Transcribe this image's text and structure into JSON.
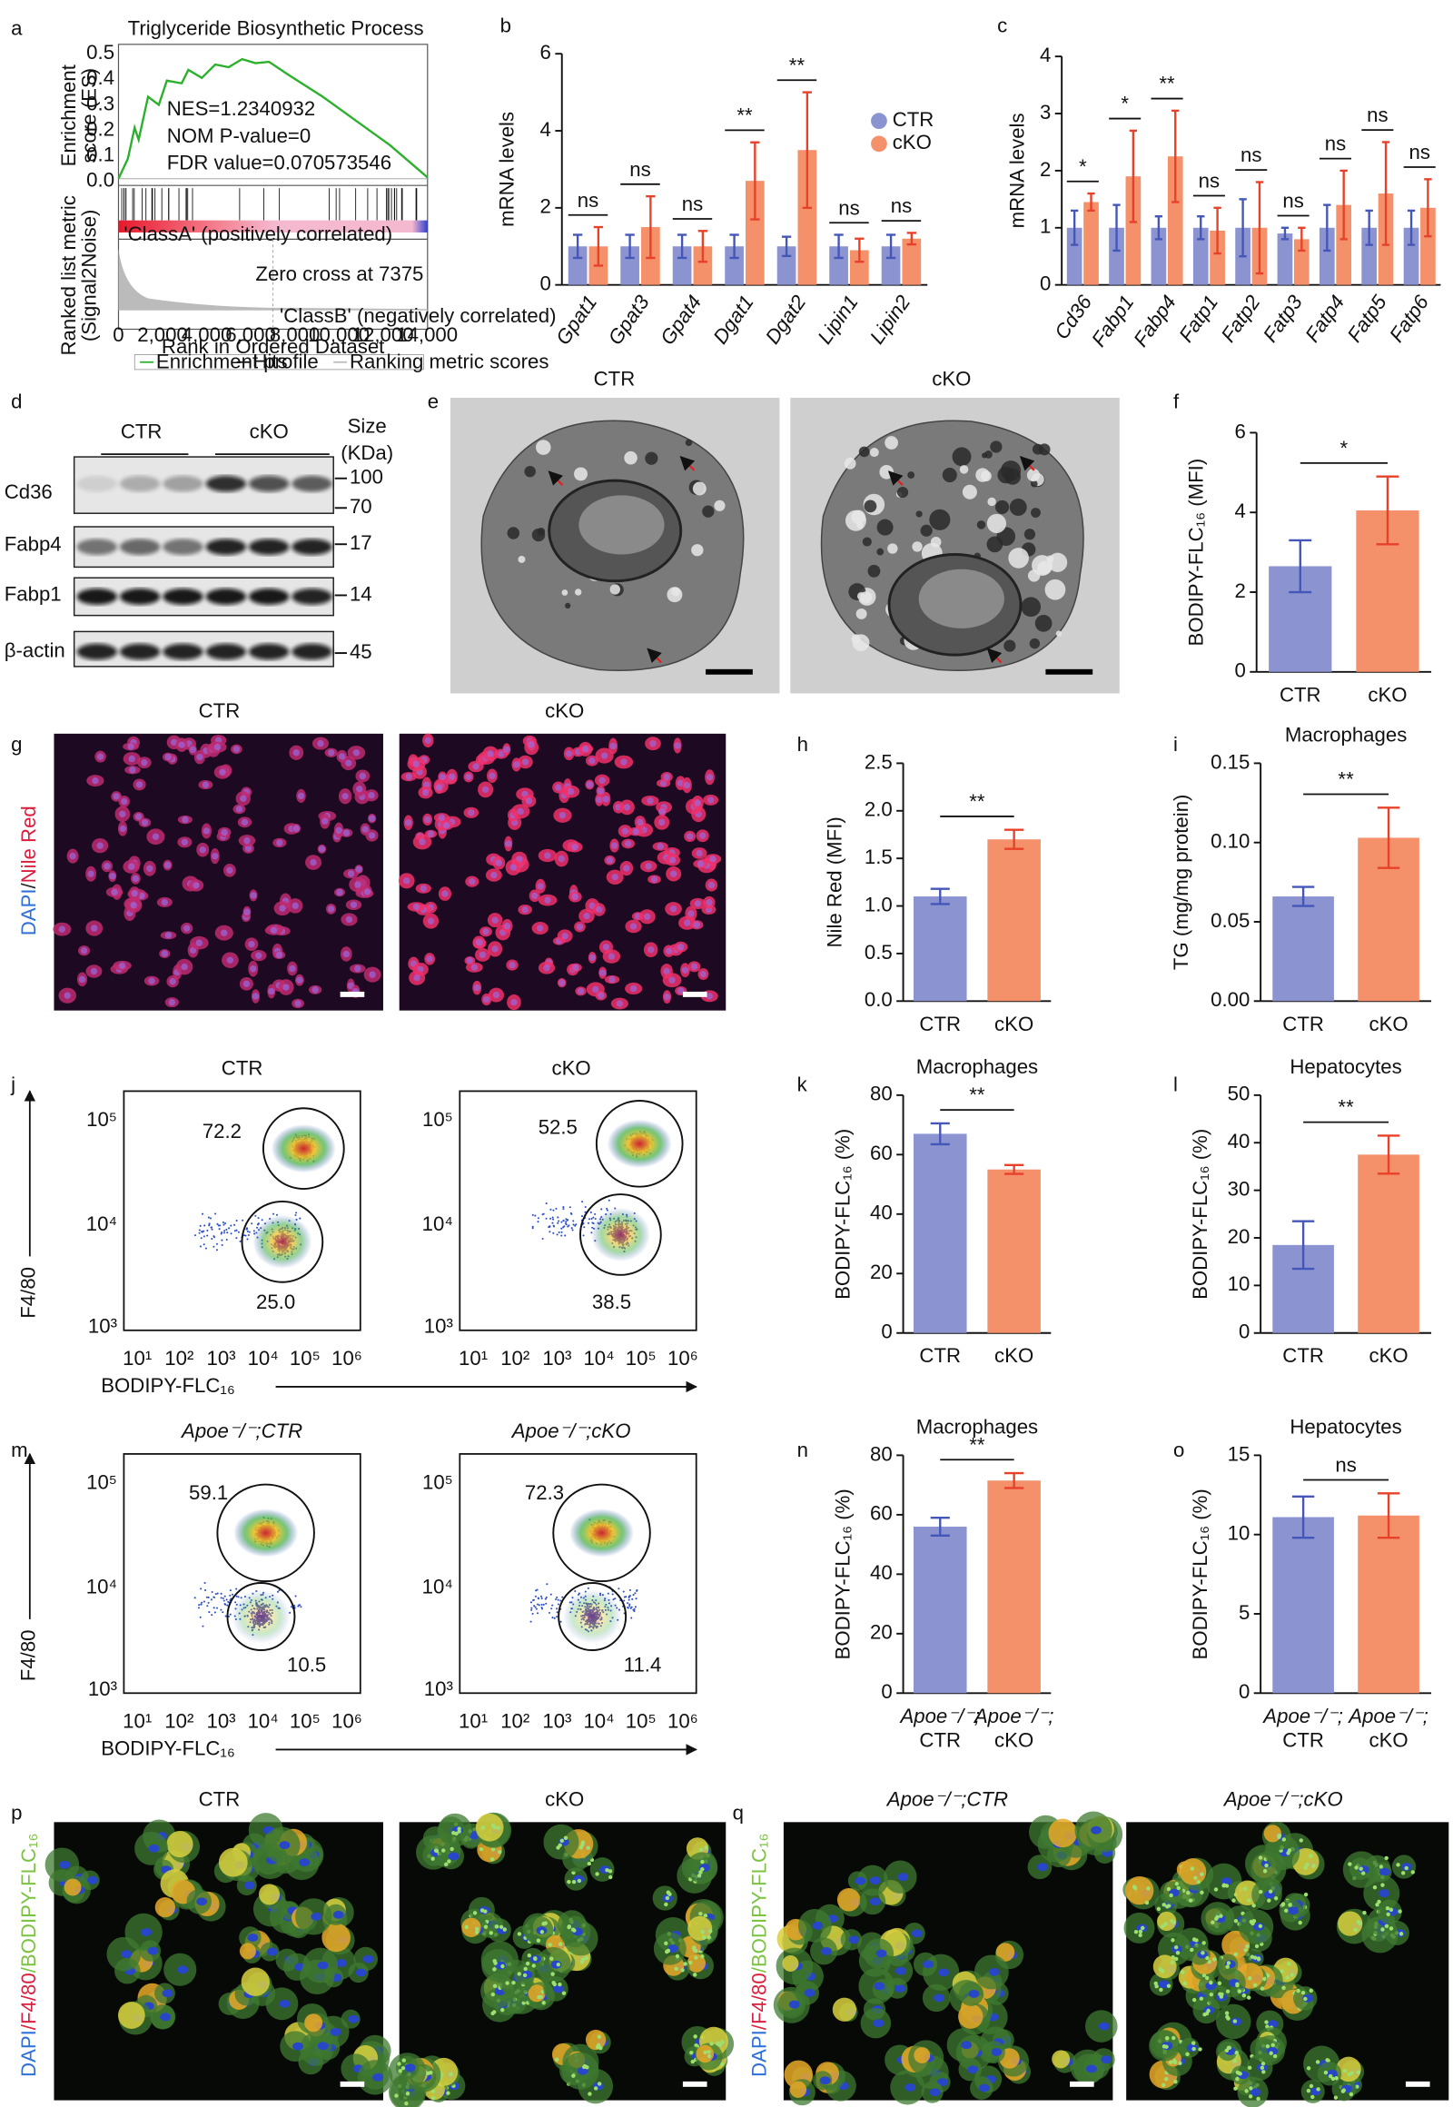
{
  "panel_labels": [
    "a",
    "b",
    "c",
    "d",
    "e",
    "f",
    "g",
    "h",
    "i",
    "j",
    "k",
    "l",
    "m",
    "n",
    "o",
    "p",
    "q"
  ],
  "gsea": {
    "title": "Triglyceride Biosynthetic Process",
    "es_label": [
      "Enrichment",
      "score (ES)"
    ],
    "stats": [
      "NES=1.2340932",
      "NOM P-value=0",
      "FDR value=0.070573546"
    ],
    "es_ticks": [
      "0.5",
      "0.4",
      "0.3",
      "0.2",
      "0.1",
      "0.0"
    ],
    "class_a": "'ClassA' (positively correlated)",
    "class_b": "'ClassB' (negatively correlated)",
    "zero_cross": "Zero cross at 7375",
    "metric_label": [
      "Ranked list metric",
      "(Signal2Noise)"
    ],
    "xticks": [
      "0",
      "2,000",
      "4,000",
      "6,000",
      "8,000",
      "10,000",
      "12,000",
      "14,000"
    ],
    "xlabel": "Rank in Ordered Dataset",
    "legend": [
      "Enrichment profile",
      "Hits",
      "Ranking metric scores"
    ]
  },
  "blot": {
    "groups": [
      "CTR",
      "cKO"
    ],
    "size_header": [
      "Size",
      "(KDa)"
    ],
    "rows": [
      {
        "label": "Cd36",
        "sizes": [
          "100",
          "70"
        ]
      },
      {
        "label": "Fabp4",
        "sizes": [
          "17"
        ]
      },
      {
        "label": "Fabp1",
        "sizes": [
          "14"
        ]
      },
      {
        "label": "β-actin",
        "sizes": [
          "45"
        ]
      }
    ]
  },
  "tem": {
    "titles": [
      "CTR",
      "cKO"
    ]
  },
  "nile": {
    "titles": [
      "CTR",
      "cKO"
    ],
    "side_label": [
      {
        "text": "DAPI",
        "color": "#2f6fd8"
      },
      {
        "text": "/",
        "color": "#222222"
      },
      {
        "text": "Nile Red",
        "color": "#d8203e"
      }
    ]
  },
  "flow_axes": {
    "y_label": "F4/80",
    "x_label": "BODIPY-FLC₁₆",
    "yticks": [
      "10⁵",
      "10⁴",
      "10³"
    ],
    "xticks": [
      "10¹",
      "10²",
      "10³",
      "10⁴",
      "10⁵",
      "10⁶"
    ]
  },
  "flow_j": {
    "titles": [
      "CTR",
      "cKO"
    ],
    "gates": [
      [
        "72.2",
        "25.0"
      ],
      [
        "52.5",
        "38.5"
      ]
    ]
  },
  "flow_m": {
    "titles": [
      "Apoe⁻/⁻;CTR",
      "Apoe⁻/⁻;cKO"
    ],
    "gates": [
      [
        "59.1",
        "10.5"
      ],
      [
        "72.3",
        "11.4"
      ]
    ]
  },
  "stain_p": {
    "titles": [
      "CTR",
      "cKO"
    ],
    "side_label": [
      {
        "text": "DAPI",
        "color": "#2f6fd8"
      },
      {
        "text": "/F4/80",
        "color": "#d8203e"
      },
      {
        "text": "/BODIPY-FLC₁₆",
        "color": "#7cc242"
      }
    ]
  },
  "stain_q": {
    "titles": [
      "Apoe⁻/⁻;CTR",
      "Apoe⁻/⁻;cKO"
    ],
    "side_label": [
      {
        "text": "DAPI",
        "color": "#2f6fd8"
      },
      {
        "text": "/F4/80",
        "color": "#d8203e"
      },
      {
        "text": "/BODIPY-FLC₁₆",
        "color": "#7cc242"
      }
    ]
  },
  "chart_data": [
    {
      "type": "bar",
      "ylabel": "mRNA levels",
      "categories": [
        "Gpat1",
        "Gpat3",
        "Gpat4",
        "Dgat1",
        "Dgat2",
        "Lipin1",
        "Lipin2"
      ],
      "rotate_labels": true,
      "legend": "upper right",
      "series": [
        {
          "name": "CTR",
          "color": "#8b93d0",
          "values": [
            1.0,
            1.0,
            1.0,
            1.0,
            1.0,
            1.0,
            1.0
          ],
          "errors": [
            0.3,
            0.3,
            0.3,
            0.3,
            0.25,
            0.3,
            0.3
          ]
        },
        {
          "name": "cKO",
          "color": "#f4916b",
          "values": [
            1.0,
            1.5,
            1.0,
            2.7,
            3.5,
            0.9,
            1.2
          ],
          "errors": [
            0.5,
            0.8,
            0.4,
            1.0,
            1.5,
            0.3,
            0.15
          ]
        }
      ],
      "annotations": [
        "ns",
        "ns",
        "ns",
        "**",
        "**",
        "ns",
        "ns"
      ],
      "ylim": [
        0,
        6
      ],
      "yticks": [
        0,
        2,
        4,
        6
      ]
    },
    {
      "type": "bar",
      "ylabel": "mRNA levels",
      "categories": [
        "Cd36",
        "Fabp1",
        "Fabp4",
        "Fatp1",
        "Fatp2",
        "Fatp3",
        "Fatp4",
        "Fatp5",
        "Fatp6"
      ],
      "rotate_labels": true,
      "series": [
        {
          "name": "CTR",
          "color": "#8b93d0",
          "values": [
            1.0,
            1.0,
            1.0,
            1.0,
            1.0,
            0.9,
            1.0,
            1.0,
            1.0
          ],
          "errors": [
            0.3,
            0.4,
            0.2,
            0.2,
            0.5,
            0.1,
            0.4,
            0.3,
            0.3
          ]
        },
        {
          "name": "cKO",
          "color": "#f4916b",
          "values": [
            1.45,
            1.9,
            2.25,
            0.95,
            1.0,
            0.8,
            1.4,
            1.6,
            1.35
          ],
          "errors": [
            0.15,
            0.8,
            0.8,
            0.4,
            0.8,
            0.2,
            0.6,
            0.9,
            0.5
          ]
        }
      ],
      "annotations": [
        "*",
        "*",
        "**",
        "ns",
        "ns",
        "ns",
        "ns",
        "ns",
        "ns"
      ],
      "ylim": [
        0,
        4
      ],
      "yticks": [
        0,
        1,
        2,
        3,
        4
      ]
    },
    {
      "type": "bar",
      "ylabel": "BODIPY-FLC₁₆ (MFI)",
      "categories": [
        "CTR",
        "cKO"
      ],
      "values": [
        2.65,
        4.05
      ],
      "errors": [
        0.65,
        0.85
      ],
      "colors": [
        "#8b93d0",
        "#f4916b"
      ],
      "significance": "*",
      "ylim": [
        0,
        6
      ],
      "yticks": [
        0,
        2,
        4,
        6
      ]
    },
    {
      "type": "bar",
      "ylabel": "Nile Red (MFI)",
      "categories": [
        "CTR",
        "cKO"
      ],
      "values": [
        1.1,
        1.7
      ],
      "errors": [
        0.08,
        0.1
      ],
      "colors": [
        "#8b93d0",
        "#f4916b"
      ],
      "significance": "**",
      "ylim": [
        0,
        2.5
      ],
      "yticks": [
        {
          "value": 0,
          "label": "0.0"
        },
        0.5,
        {
          "value": 1,
          "label": "1.0"
        },
        1.5,
        {
          "value": 2,
          "label": "2.0"
        },
        2.5
      ]
    },
    {
      "type": "bar",
      "title": "Macrophages",
      "ylabel": "TG (mg/mg protein)",
      "categories": [
        "CTR",
        "cKO"
      ],
      "values": [
        0.066,
        0.103
      ],
      "errors": [
        0.006,
        0.019
      ],
      "colors": [
        "#8b93d0",
        "#f4916b"
      ],
      "significance": "**",
      "ylim": [
        0,
        0.15
      ],
      "yticks": [
        {
          "value": 0,
          "label": "0.00"
        },
        {
          "value": 0.05,
          "label": "0.05"
        },
        {
          "value": 0.1,
          "label": "0.10"
        },
        {
          "value": 0.15,
          "label": "0.15"
        }
      ]
    },
    {
      "type": "bar",
      "title": "Macrophages",
      "ylabel": "BODIPY-FLC₁₆ (%)",
      "categories": [
        "CTR",
        "cKO"
      ],
      "values": [
        67,
        55
      ],
      "errors": [
        3.5,
        1.5
      ],
      "colors": [
        "#8b93d0",
        "#f4916b"
      ],
      "significance": "**",
      "ylim": [
        0,
        80
      ],
      "yticks": [
        0,
        20,
        40,
        60,
        80
      ]
    },
    {
      "type": "bar",
      "title": "Hepatocytes",
      "ylabel": "BODIPY-FLC₁₆ (%)",
      "categories": [
        "CTR",
        "cKO"
      ],
      "values": [
        18.5,
        37.5
      ],
      "errors": [
        5,
        4
      ],
      "colors": [
        "#8b93d0",
        "#f4916b"
      ],
      "significance": "**",
      "ylim": [
        0,
        50
      ],
      "yticks": [
        0,
        10,
        20,
        30,
        40,
        50
      ]
    },
    {
      "type": "bar",
      "title": "Macrophages",
      "ylabel": "BODIPY-FLC₁₆ (%)",
      "categories": [
        [
          "Apoe⁻/⁻;",
          "CTR"
        ],
        [
          "Apoe⁻/⁻;",
          "cKO"
        ]
      ],
      "values": [
        56,
        71.5
      ],
      "errors": [
        3,
        2.5
      ],
      "colors": [
        "#8b93d0",
        "#f4916b"
      ],
      "significance": "**",
      "ylim": [
        0,
        80
      ],
      "yticks": [
        0,
        20,
        40,
        60,
        80
      ]
    },
    {
      "type": "bar",
      "title": "Hepatocytes",
      "ylabel": "BODIPY-FLC₁₆ (%)",
      "categories": [
        [
          "Apoe⁻/⁻;",
          "CTR"
        ],
        [
          "Apoe⁻/⁻;",
          "cKO"
        ]
      ],
      "values": [
        11.1,
        11.2
      ],
      "errors": [
        1.3,
        1.4
      ],
      "colors": [
        "#8b93d0",
        "#f4916b"
      ],
      "significance": "ns",
      "ylim": [
        0,
        15
      ],
      "yticks": [
        0,
        5,
        10,
        15
      ]
    }
  ]
}
